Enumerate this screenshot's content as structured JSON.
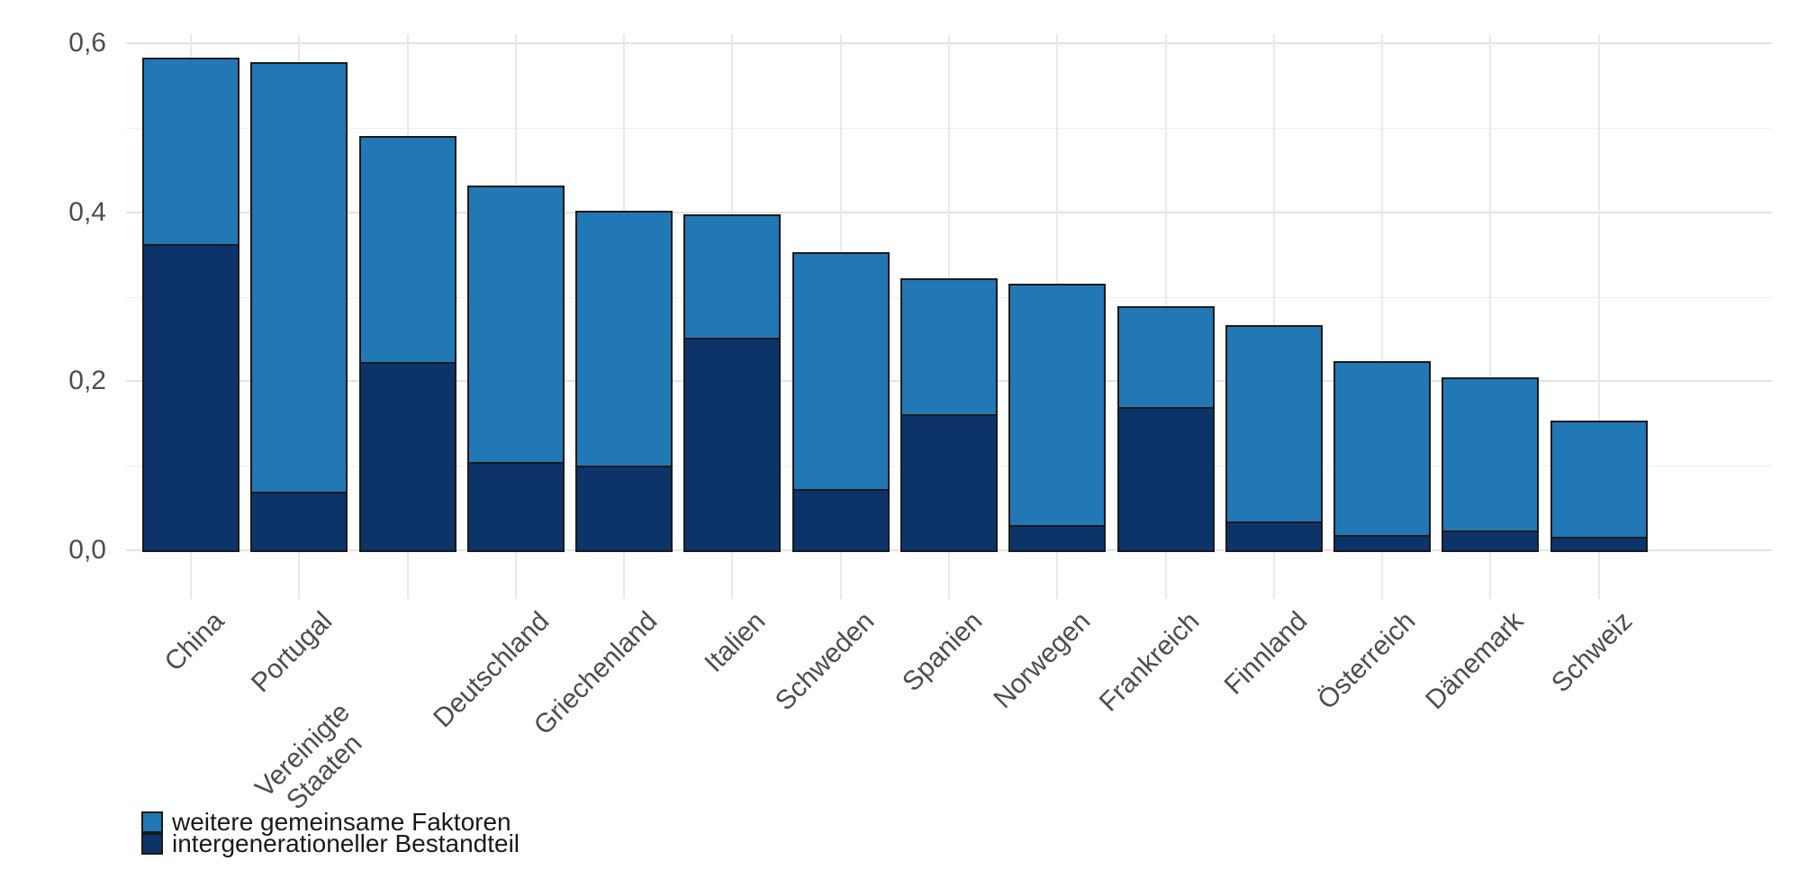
{
  "figure": {
    "background": "#ffffff"
  },
  "legend": {
    "position": "bottom-left",
    "items": [
      {
        "label": "weitere gemeinsame Faktoren",
        "color": "#2277B5"
      },
      {
        "label": "intergenerationeller Bestandteil",
        "color": "#0D3469"
      }
    ]
  },
  "chart_data": {
    "type": "bar",
    "stacked": true,
    "title": "",
    "xlabel": "",
    "ylabel": "",
    "categories": [
      "China",
      "Portugal",
      "Vereinigte\nStaaten",
      "Deutschland",
      "Griechenland",
      "Italien",
      "Schweden",
      "Spanien",
      "Norwegen",
      "Frankreich",
      "Finnland",
      "Österreich",
      "Dänemark",
      "Schweiz"
    ],
    "series": [
      {
        "name": "intergenerationeller Bestandteil",
        "color": "#0D3469",
        "values": [
          0.362,
          0.069,
          0.223,
          0.105,
          0.1,
          0.252,
          0.073,
          0.161,
          0.03,
          0.17,
          0.034,
          0.018,
          0.023,
          0.016
        ]
      },
      {
        "name": "weitere gemeinsame Faktoren",
        "color": "#2277B5",
        "values": [
          0.221,
          0.509,
          0.268,
          0.327,
          0.302,
          0.146,
          0.28,
          0.161,
          0.286,
          0.119,
          0.232,
          0.206,
          0.181,
          0.137
        ]
      }
    ],
    "totals": [
      0.583,
      0.578,
      0.491,
      0.432,
      0.402,
      0.398,
      0.353,
      0.322,
      0.316,
      0.289,
      0.266,
      0.224,
      0.204,
      0.153
    ],
    "ylim": [
      0,
      0.63
    ],
    "yticks": {
      "values": [
        0,
        0.2,
        0.4,
        0.6
      ],
      "labels": [
        "0,0",
        "0,2",
        "0,4",
        "0,6"
      ],
      "minor": [
        0.1,
        0.3,
        0.5
      ]
    },
    "decimal_separator": ",",
    "grid": "on",
    "bar_outline": "#1a1a1a",
    "bar_width_fraction": 0.9,
    "legend_position": "bottom-left"
  }
}
